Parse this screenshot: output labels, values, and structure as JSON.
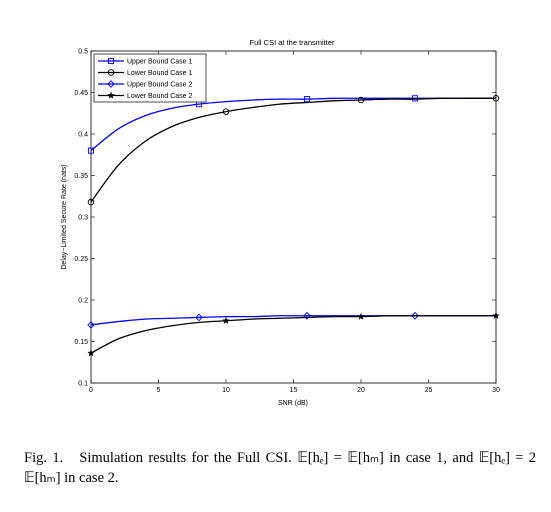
{
  "chart_data": {
    "type": "line",
    "title": "Full CSI at the transmitter",
    "xlabel": "SNR (dB)",
    "ylabel": "Delay−Limited Secure Rate (nats)",
    "xlim": [
      0,
      30
    ],
    "ylim": [
      0.1,
      0.5
    ],
    "xticks": [
      "0",
      "5",
      "10",
      "15",
      "20",
      "25",
      "30"
    ],
    "yticks": [
      "0.1",
      "0.15",
      "0.2",
      "0.25",
      "0.3",
      "0.35",
      "0.4",
      "0.45",
      "0.5"
    ],
    "grid": false,
    "legend_position": "top-left",
    "series": [
      {
        "name": "Upper Bound Case 1",
        "color": "#0000ff",
        "marker": "square",
        "x": [
          0,
          2,
          4,
          6,
          8,
          10,
          12,
          14,
          16,
          18,
          20,
          22,
          24,
          26,
          28,
          30
        ],
        "y": [
          0.38,
          0.406,
          0.422,
          0.431,
          0.436,
          0.439,
          0.441,
          0.442,
          0.442,
          0.443,
          0.443,
          0.443,
          0.443,
          0.443,
          0.443,
          0.443
        ],
        "marker_x": [
          0,
          8,
          16,
          24
        ]
      },
      {
        "name": "Lower Bound Case 1",
        "color": "#000000",
        "marker": "circle",
        "x": [
          0,
          2,
          4,
          6,
          8,
          10,
          12,
          14,
          16,
          18,
          20,
          22,
          24,
          26,
          28,
          30
        ],
        "y": [
          0.318,
          0.362,
          0.391,
          0.409,
          0.42,
          0.427,
          0.432,
          0.436,
          0.438,
          0.44,
          0.441,
          0.442,
          0.442,
          0.443,
          0.443,
          0.443
        ],
        "marker_x": [
          0,
          10,
          20,
          30
        ]
      },
      {
        "name": "Upper Bound Case 2",
        "color": "#0000ff",
        "marker": "diamond",
        "x": [
          0,
          2,
          4,
          6,
          8,
          10,
          12,
          14,
          16,
          18,
          20,
          22,
          24,
          26,
          28,
          30
        ],
        "y": [
          0.17,
          0.174,
          0.177,
          0.178,
          0.179,
          0.18,
          0.18,
          0.181,
          0.181,
          0.181,
          0.181,
          0.181,
          0.181,
          0.181,
          0.181,
          0.181
        ],
        "marker_x": [
          0,
          8,
          16,
          24
        ]
      },
      {
        "name": "Lower Bound Case 2",
        "color": "#000000",
        "marker": "star",
        "x": [
          0,
          2,
          4,
          6,
          8,
          10,
          12,
          14,
          16,
          18,
          20,
          22,
          24,
          26,
          28,
          30
        ],
        "y": [
          0.136,
          0.153,
          0.163,
          0.169,
          0.173,
          0.175,
          0.177,
          0.178,
          0.179,
          0.18,
          0.18,
          0.181,
          0.181,
          0.181,
          0.181,
          0.181
        ],
        "marker_x": [
          0,
          10,
          20,
          30
        ]
      }
    ]
  },
  "caption": {
    "label": "Fig. 1.",
    "text_before": "Simulation results for the Full CSI.",
    "eq1": "𝔼[hₑ] = 𝔼[hₘ]",
    "text_mid": "in case 1, and",
    "eq2": "𝔼[hₑ] = 2 𝔼[hₘ]",
    "text_after": "in case 2."
  }
}
